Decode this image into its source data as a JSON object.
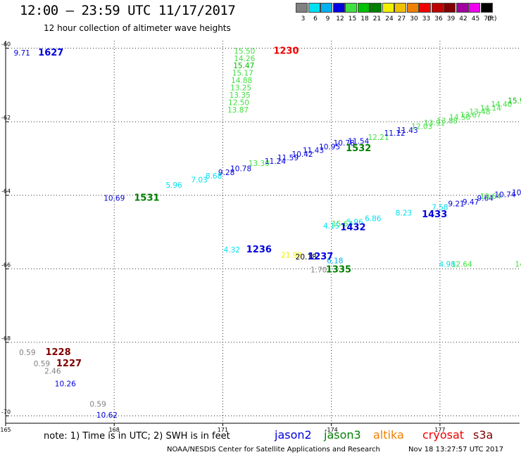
{
  "header": {
    "title": "12:00 – 23:59 UTC 11/17/2017",
    "subtitle": "12 hour collection of altimeter wave heights"
  },
  "colorbar": {
    "unit": "(ft)",
    "bins": [
      {
        "label": "3",
        "color": "#808080"
      },
      {
        "label": "6",
        "color": "#00e0f0"
      },
      {
        "label": "9",
        "color": "#00b0f0"
      },
      {
        "label": "12",
        "color": "#0000e0"
      },
      {
        "label": "15",
        "color": "#40e040"
      },
      {
        "label": "18",
        "color": "#00c000"
      },
      {
        "label": "21",
        "color": "#008000"
      },
      {
        "label": "24",
        "color": "#f0f000"
      },
      {
        "label": "27",
        "color": "#f0c000"
      },
      {
        "label": "30",
        "color": "#f08000"
      },
      {
        "label": "33",
        "color": "#f00000"
      },
      {
        "label": "36",
        "color": "#c00000"
      },
      {
        "label": "39",
        "color": "#800000"
      },
      {
        "label": "42",
        "color": "#a000a0"
      },
      {
        "label": "45",
        "color": "#f000f0"
      },
      {
        "label": "70",
        "color": "#000000"
      }
    ]
  },
  "chart_data": {
    "type": "scatter",
    "title": "12:00 – 23:59 UTC 11/17/2017",
    "subtitle": "12 hour collection of altimeter wave heights",
    "xlim": [
      165,
      179.2
    ],
    "ylim": [
      -70.2,
      -59.8
    ],
    "x_ticks": [
      {
        "value": 165,
        "label": "165"
      },
      {
        "value": 168,
        "label": "168"
      },
      {
        "value": 171,
        "label": "171"
      },
      {
        "value": 174,
        "label": "-174"
      },
      {
        "value": 177,
        "label": "177"
      }
    ],
    "y_ticks": [
      {
        "value": -60,
        "label": "-60"
      },
      {
        "value": -62,
        "label": "-62"
      },
      {
        "value": -64,
        "label": "-64"
      },
      {
        "value": -66,
        "label": "-66"
      },
      {
        "value": -68,
        "label": "-68"
      },
      {
        "value": -70,
        "label": "-70"
      }
    ],
    "grid": true,
    "points": [
      {
        "x": 165.45,
        "y": -60.2,
        "label": "9.71",
        "color": "#0000e0"
      },
      {
        "x": 171.6,
        "y": -60.15,
        "label": "15.50",
        "color": "#40e040"
      },
      {
        "x": 171.6,
        "y": -60.35,
        "label": "14.26",
        "color": "#40e040"
      },
      {
        "x": 171.58,
        "y": -60.55,
        "label": "15.47",
        "color": "#00c000"
      },
      {
        "x": 171.55,
        "y": -60.75,
        "label": "15.17",
        "color": "#40e040"
      },
      {
        "x": 171.52,
        "y": -60.95,
        "label": "14.88",
        "color": "#40e040"
      },
      {
        "x": 171.5,
        "y": -61.15,
        "label": "13.25",
        "color": "#40e040"
      },
      {
        "x": 171.47,
        "y": -61.35,
        "label": "13.35",
        "color": "#40e040"
      },
      {
        "x": 171.44,
        "y": -61.55,
        "label": "12.50",
        "color": "#40e040"
      },
      {
        "x": 171.42,
        "y": -61.75,
        "label": "13.87",
        "color": "#40e040"
      },
      {
        "x": 168.0,
        "y": -64.15,
        "label": "10.69",
        "color": "#0000e0"
      },
      {
        "x": 169.65,
        "y": -63.8,
        "label": "5.96",
        "color": "#00e0f0"
      },
      {
        "x": 170.35,
        "y": -63.65,
        "label": "7.03",
        "color": "#00e0f0"
      },
      {
        "x": 170.75,
        "y": -63.55,
        "label": "8.68",
        "color": "#00e0f0"
      },
      {
        "x": 171.1,
        "y": -63.45,
        "label": "9.28",
        "color": "#0000e0"
      },
      {
        "x": 171.5,
        "y": -63.35,
        "label": "10.78",
        "color": "#0000e0"
      },
      {
        "x": 172.0,
        "y": -63.2,
        "label": "13.30",
        "color": "#40e040"
      },
      {
        "x": 172.45,
        "y": -63.15,
        "label": "11.24",
        "color": "#0000e0"
      },
      {
        "x": 172.8,
        "y": -63.05,
        "label": "11.59",
        "color": "#0000e0"
      },
      {
        "x": 173.2,
        "y": -62.95,
        "label": "10.42",
        "color": "#0000e0"
      },
      {
        "x": 173.5,
        "y": -62.85,
        "label": "11.43",
        "color": "#0000e0"
      },
      {
        "x": 173.95,
        "y": -62.75,
        "label": "10.95",
        "color": "#0000e0"
      },
      {
        "x": 174.35,
        "y": -62.65,
        "label": "10.78",
        "color": "#0000e0"
      },
      {
        "x": 174.75,
        "y": -62.6,
        "label": "11.54",
        "color": "#0000e0"
      },
      {
        "x": 175.3,
        "y": -62.5,
        "label": "12.21",
        "color": "#40e040"
      },
      {
        "x": 175.75,
        "y": -62.38,
        "label": "11.12",
        "color": "#0000e0"
      },
      {
        "x": 176.1,
        "y": -62.3,
        "label": "11.43",
        "color": "#0000e0"
      },
      {
        "x": 176.5,
        "y": -62.2,
        "label": "12.03",
        "color": "#40e040"
      },
      {
        "x": 176.85,
        "y": -62.1,
        "label": "13.91",
        "color": "#40e040"
      },
      {
        "x": 177.2,
        "y": -62.05,
        "label": "13.88",
        "color": "#40e040"
      },
      {
        "x": 177.55,
        "y": -61.95,
        "label": "14.50",
        "color": "#40e040"
      },
      {
        "x": 177.85,
        "y": -61.88,
        "label": "13.67",
        "color": "#40e040"
      },
      {
        "x": 178.1,
        "y": -61.8,
        "label": "13.48",
        "color": "#40e040"
      },
      {
        "x": 178.4,
        "y": -61.7,
        "label": "14.14",
        "color": "#40e040"
      },
      {
        "x": 178.7,
        "y": -61.6,
        "label": "14.40",
        "color": "#40e040"
      },
      {
        "x": 179.1,
        "y": -61.5,
        "label": "15.9",
        "color": "#00c000"
      },
      {
        "x": 174.0,
        "y": -64.9,
        "label": "4.15",
        "color": "#00e0f0"
      },
      {
        "x": 174.3,
        "y": -64.85,
        "label": "15.63",
        "color": "#40e040"
      },
      {
        "x": 174.65,
        "y": -64.8,
        "label": "5.96",
        "color": "#00e0f0"
      },
      {
        "x": 175.15,
        "y": -64.7,
        "label": "6.86",
        "color": "#00e0f0"
      },
      {
        "x": 176.0,
        "y": -64.55,
        "label": "8.23",
        "color": "#00e0f0"
      },
      {
        "x": 177.0,
        "y": -64.4,
        "label": "7.58",
        "color": "#00e0f0"
      },
      {
        "x": 177.45,
        "y": -64.3,
        "label": "9.21",
        "color": "#0000e0"
      },
      {
        "x": 177.85,
        "y": -64.25,
        "label": "9.47",
        "color": "#0000e0"
      },
      {
        "x": 178.25,
        "y": -64.15,
        "label": "9.64",
        "color": "#0000e0"
      },
      {
        "x": 178.4,
        "y": -64.1,
        "label": "19.64",
        "color": "#40e040"
      },
      {
        "x": 178.8,
        "y": -64.05,
        "label": "10.74",
        "color": "#0000e0"
      },
      {
        "x": 179.15,
        "y": -64.0,
        "label": "10.",
        "color": "#0000e0"
      },
      {
        "x": 171.25,
        "y": -65.55,
        "label": "4.32",
        "color": "#00e0f0"
      },
      {
        "x": 172.9,
        "y": -65.7,
        "label": "21.93",
        "color": "#f0f000"
      },
      {
        "x": 173.3,
        "y": -65.75,
        "label": "20.18",
        "color": "#000000"
      },
      {
        "x": 174.1,
        "y": -65.85,
        "label": "6.18",
        "color": "#00b0f0"
      },
      {
        "x": 173.65,
        "y": -66.1,
        "label": "1.70",
        "color": "#808080"
      },
      {
        "x": 177.2,
        "y": -65.95,
        "label": "4.98",
        "color": "#00e0f0"
      },
      {
        "x": 177.6,
        "y": -65.95,
        "label": "12.64",
        "color": "#40e040"
      },
      {
        "x": 179.2,
        "y": -65.95,
        "label": "14",
        "color": "#40e040"
      },
      {
        "x": 165.6,
        "y": -68.35,
        "label": "0.59",
        "color": "#808080"
      },
      {
        "x": 166.0,
        "y": -68.65,
        "label": "0.59",
        "color": "#808080"
      },
      {
        "x": 166.3,
        "y": -68.85,
        "label": "2.46",
        "color": "#808080"
      },
      {
        "x": 166.65,
        "y": -69.2,
        "label": "10.26",
        "color": "#0000e0"
      },
      {
        "x": 167.55,
        "y": -69.75,
        "label": "0.59",
        "color": "#808080"
      },
      {
        "x": 167.8,
        "y": -70.05,
        "label": "10.62",
        "color": "#0000e0"
      }
    ],
    "time_labels": [
      {
        "x": 166.25,
        "y": -60.2,
        "label": "1627",
        "color": "#0000e0"
      },
      {
        "x": 172.75,
        "y": -60.15,
        "label": "1230",
        "color": "#f00000"
      },
      {
        "x": 168.9,
        "y": -64.15,
        "label": "1531",
        "color": "#008000"
      },
      {
        "x": 174.75,
        "y": -62.8,
        "label": "1532",
        "color": "#008000"
      },
      {
        "x": 174.6,
        "y": -64.95,
        "label": "1432",
        "color": "#0000e0"
      },
      {
        "x": 176.85,
        "y": -64.6,
        "label": "1433",
        "color": "#0000e0"
      },
      {
        "x": 172.0,
        "y": -65.55,
        "label": "1236",
        "color": "#0000e0"
      },
      {
        "x": 173.7,
        "y": -65.75,
        "label": "1237",
        "color": "#0000e0"
      },
      {
        "x": 174.2,
        "y": -66.1,
        "label": "1335",
        "color": "#008000"
      },
      {
        "x": 166.45,
        "y": -68.35,
        "label": "1228",
        "color": "#800000"
      },
      {
        "x": 166.75,
        "y": -68.65,
        "label": "1227",
        "color": "#800000"
      }
    ]
  },
  "footer": {
    "note": "note: 1) Time is in UTC; 2) SWH is in feet",
    "satellites": [
      {
        "name": "jason2",
        "color": "#0000e0"
      },
      {
        "name": "jason3",
        "color": "#008000"
      },
      {
        "name": "altika",
        "color": "#f08000"
      },
      {
        "name": "cryosat",
        "color": "#f00000"
      },
      {
        "name": "s3a",
        "color": "#800000"
      }
    ],
    "credit": "NOAA/NESDIS Center for Satellite Applications and Research",
    "timestamp": "Nov 18 13:27:57 UTC 2017"
  }
}
